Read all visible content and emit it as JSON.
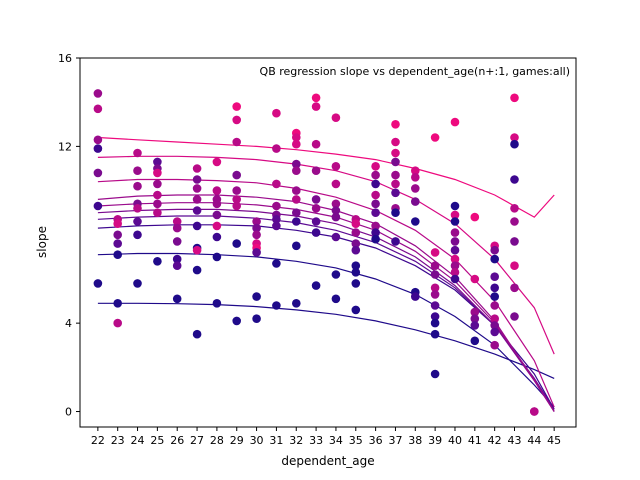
{
  "chart_data": {
    "type": "scatter",
    "title": "QB regression slope vs dependent_age(n+:1, games:all)",
    "xlabel": "dependent_age",
    "ylabel": "slope",
    "x_ticks": [
      "22",
      "23",
      "24",
      "25",
      "26",
      "27",
      "28",
      "29",
      "30",
      "31",
      "32",
      "33",
      "34",
      "35",
      "36",
      "37",
      "38",
      "39",
      "40",
      "41",
      "42",
      "43",
      "44",
      "45"
    ],
    "y_ticks": [
      0,
      4,
      12,
      16
    ],
    "ylim": [
      -0.7,
      16
    ],
    "xlim": [
      21.1,
      46.1
    ],
    "series_colors": [
      "#1f0a8a",
      "#3d078f",
      "#5c0a93",
      "#7a0b8f",
      "#9a0b8c",
      "#b80a88",
      "#d60a84",
      "#ee0a7e"
    ],
    "curves": [
      {
        "color_index": 0,
        "x": [
          22,
          24,
          26,
          28,
          30,
          32,
          34,
          36,
          38,
          40,
          42,
          44,
          45
        ],
        "y": [
          4.9,
          4.9,
          4.88,
          4.84,
          4.75,
          4.6,
          4.4,
          4.1,
          3.7,
          3.2,
          2.6,
          1.9,
          1.5
        ]
      },
      {
        "color_index": 0,
        "x": [
          22,
          24,
          26,
          28,
          30,
          32,
          34,
          36,
          38,
          40,
          42,
          44,
          45
        ],
        "y": [
          7.1,
          7.15,
          7.15,
          7.1,
          7.0,
          6.8,
          6.5,
          6.0,
          5.3,
          4.3,
          3.0,
          1.2,
          0.2
        ]
      },
      {
        "color_index": 1,
        "x": [
          22,
          24,
          26,
          28,
          30,
          32,
          34,
          36,
          38,
          40,
          42,
          44,
          45
        ],
        "y": [
          8.3,
          8.4,
          8.45,
          8.45,
          8.4,
          8.2,
          7.9,
          7.4,
          6.6,
          5.5,
          3.9,
          1.7,
          0.1
        ]
      },
      {
        "color_index": 2,
        "x": [
          22,
          24,
          26,
          28,
          30,
          32,
          34,
          36,
          38,
          40,
          42,
          44,
          45
        ],
        "y": [
          8.7,
          8.8,
          8.85,
          8.85,
          8.75,
          8.55,
          8.2,
          7.65,
          6.8,
          5.6,
          3.9,
          1.5,
          0.1
        ]
      },
      {
        "color_index": 3,
        "x": [
          22,
          24,
          26,
          28,
          30,
          32,
          34,
          36,
          38,
          40,
          42,
          44,
          45
        ],
        "y": [
          9.0,
          9.1,
          9.15,
          9.15,
          9.05,
          8.85,
          8.5,
          7.9,
          7.0,
          5.7,
          3.9,
          1.4,
          0.0
        ]
      },
      {
        "color_index": 4,
        "x": [
          22,
          24,
          26,
          28,
          30,
          32,
          34,
          36,
          38,
          40,
          42,
          44,
          45
        ],
        "y": [
          9.6,
          9.75,
          9.8,
          9.8,
          9.7,
          9.5,
          9.1,
          8.5,
          7.5,
          6.1,
          4.1,
          1.4,
          0.0
        ]
      },
      {
        "color_index": 4,
        "x": [
          22,
          24,
          26,
          28,
          30,
          32,
          34,
          36,
          38,
          40,
          42,
          44,
          45
        ],
        "y": [
          9.3,
          9.4,
          9.45,
          9.45,
          9.35,
          9.15,
          8.8,
          8.2,
          7.25,
          5.9,
          4.0,
          1.45,
          0.0
        ]
      },
      {
        "color_index": 5,
        "x": [
          22,
          24,
          26,
          28,
          30,
          32,
          34,
          36,
          38,
          40,
          42,
          44,
          45
        ],
        "y": [
          10.4,
          10.5,
          10.5,
          10.45,
          10.35,
          10.1,
          9.7,
          9.1,
          8.2,
          6.9,
          5.0,
          2.3,
          0.2
        ]
      },
      {
        "color_index": 6,
        "x": [
          22,
          24,
          26,
          28,
          30,
          32,
          34,
          36,
          38,
          40,
          42,
          44,
          45
        ],
        "y": [
          11.5,
          11.55,
          11.55,
          11.5,
          11.4,
          11.2,
          10.9,
          10.4,
          9.6,
          8.5,
          6.9,
          4.7,
          2.6
        ]
      },
      {
        "color_index": 7,
        "x": [
          22,
          24,
          26,
          28,
          30,
          32,
          34,
          36,
          38,
          40,
          42,
          44,
          45
        ],
        "y": [
          12.4,
          12.3,
          12.2,
          12.1,
          12.0,
          11.85,
          11.65,
          11.4,
          11.0,
          10.5,
          9.8,
          8.8,
          9.8
        ]
      }
    ],
    "points": [
      {
        "x": 22,
        "y": 14.4,
        "c": 4
      },
      {
        "x": 22,
        "y": 13.7,
        "c": 5
      },
      {
        "x": 22,
        "y": 12.3,
        "c": 4
      },
      {
        "x": 22,
        "y": 11.9,
        "c": 1
      },
      {
        "x": 22,
        "y": 10.8,
        "c": 3
      },
      {
        "x": 22,
        "y": 9.3,
        "c": 1
      },
      {
        "x": 22,
        "y": 5.8,
        "c": 0
      },
      {
        "x": 23,
        "y": 8.7,
        "c": 5
      },
      {
        "x": 23,
        "y": 8.5,
        "c": 6
      },
      {
        "x": 23,
        "y": 8.0,
        "c": 3
      },
      {
        "x": 23,
        "y": 7.6,
        "c": 2
      },
      {
        "x": 23,
        "y": 7.1,
        "c": 0
      },
      {
        "x": 23,
        "y": 4.9,
        "c": 0
      },
      {
        "x": 23,
        "y": 4.0,
        "c": 5
      },
      {
        "x": 24,
        "y": 11.7,
        "c": 5
      },
      {
        "x": 24,
        "y": 10.9,
        "c": 4
      },
      {
        "x": 24,
        "y": 10.2,
        "c": 4
      },
      {
        "x": 24,
        "y": 9.4,
        "c": 3
      },
      {
        "x": 24,
        "y": 9.2,
        "c": 5
      },
      {
        "x": 24,
        "y": 8.6,
        "c": 2
      },
      {
        "x": 24,
        "y": 8.0,
        "c": 1
      },
      {
        "x": 24,
        "y": 5.8,
        "c": 0
      },
      {
        "x": 25,
        "y": 11.3,
        "c": 2
      },
      {
        "x": 25,
        "y": 11.0,
        "c": 3
      },
      {
        "x": 25,
        "y": 10.8,
        "c": 6
      },
      {
        "x": 25,
        "y": 10.3,
        "c": 4
      },
      {
        "x": 25,
        "y": 9.8,
        "c": 5
      },
      {
        "x": 25,
        "y": 9.4,
        "c": 4
      },
      {
        "x": 25,
        "y": 9.0,
        "c": 5
      },
      {
        "x": 25,
        "y": 6.8,
        "c": 0
      },
      {
        "x": 26,
        "y": 8.6,
        "c": 5
      },
      {
        "x": 26,
        "y": 8.3,
        "c": 4
      },
      {
        "x": 26,
        "y": 7.7,
        "c": 3
      },
      {
        "x": 26,
        "y": 6.9,
        "c": 1
      },
      {
        "x": 26,
        "y": 6.6,
        "c": 2
      },
      {
        "x": 26,
        "y": 5.1,
        "c": 0
      },
      {
        "x": 27,
        "y": 11.0,
        "c": 5
      },
      {
        "x": 27,
        "y": 10.5,
        "c": 3
      },
      {
        "x": 27,
        "y": 10.1,
        "c": 4
      },
      {
        "x": 27,
        "y": 9.6,
        "c": 4
      },
      {
        "x": 27,
        "y": 9.1,
        "c": 2
      },
      {
        "x": 27,
        "y": 8.4,
        "c": 1
      },
      {
        "x": 27,
        "y": 7.4,
        "c": 0
      },
      {
        "x": 27,
        "y": 7.3,
        "c": 6
      },
      {
        "x": 27,
        "y": 6.4,
        "c": 0
      },
      {
        "x": 27,
        "y": 3.5,
        "c": 0
      },
      {
        "x": 28,
        "y": 11.3,
        "c": 6
      },
      {
        "x": 28,
        "y": 10.0,
        "c": 5
      },
      {
        "x": 28,
        "y": 9.6,
        "c": 4
      },
      {
        "x": 28,
        "y": 9.4,
        "c": 4
      },
      {
        "x": 28,
        "y": 8.9,
        "c": 3
      },
      {
        "x": 28,
        "y": 8.4,
        "c": 6
      },
      {
        "x": 28,
        "y": 7.9,
        "c": 1
      },
      {
        "x": 28,
        "y": 7.0,
        "c": 0
      },
      {
        "x": 28,
        "y": 4.9,
        "c": 0
      },
      {
        "x": 29,
        "y": 13.8,
        "c": 7
      },
      {
        "x": 29,
        "y": 13.2,
        "c": 6
      },
      {
        "x": 29,
        "y": 12.2,
        "c": 5
      },
      {
        "x": 29,
        "y": 10.7,
        "c": 3
      },
      {
        "x": 29,
        "y": 10.0,
        "c": 4
      },
      {
        "x": 29,
        "y": 9.6,
        "c": 5
      },
      {
        "x": 29,
        "y": 9.3,
        "c": 5
      },
      {
        "x": 29,
        "y": 7.6,
        "c": 0
      },
      {
        "x": 29,
        "y": 4.1,
        "c": 0
      },
      {
        "x": 30,
        "y": 8.6,
        "c": 4
      },
      {
        "x": 30,
        "y": 8.3,
        "c": 3
      },
      {
        "x": 30,
        "y": 8.0,
        "c": 4
      },
      {
        "x": 30,
        "y": 7.6,
        "c": 6
      },
      {
        "x": 30,
        "y": 7.4,
        "c": 7
      },
      {
        "x": 30,
        "y": 7.2,
        "c": 2
      },
      {
        "x": 30,
        "y": 5.2,
        "c": 0
      },
      {
        "x": 30,
        "y": 4.2,
        "c": 0
      },
      {
        "x": 31,
        "y": 13.5,
        "c": 6
      },
      {
        "x": 31,
        "y": 11.9,
        "c": 5
      },
      {
        "x": 31,
        "y": 10.3,
        "c": 5
      },
      {
        "x": 31,
        "y": 9.3,
        "c": 4
      },
      {
        "x": 31,
        "y": 8.9,
        "c": 3
      },
      {
        "x": 31,
        "y": 8.7,
        "c": 2
      },
      {
        "x": 31,
        "y": 8.4,
        "c": 2
      },
      {
        "x": 31,
        "y": 6.7,
        "c": 0
      },
      {
        "x": 31,
        "y": 4.8,
        "c": 0
      },
      {
        "x": 32,
        "y": 12.6,
        "c": 7
      },
      {
        "x": 32,
        "y": 12.4,
        "c": 6
      },
      {
        "x": 32,
        "y": 12.1,
        "c": 6
      },
      {
        "x": 32,
        "y": 11.2,
        "c": 3
      },
      {
        "x": 32,
        "y": 10.9,
        "c": 4
      },
      {
        "x": 32,
        "y": 10.0,
        "c": 4
      },
      {
        "x": 32,
        "y": 9.6,
        "c": 5
      },
      {
        "x": 32,
        "y": 9.0,
        "c": 3
      },
      {
        "x": 32,
        "y": 8.6,
        "c": 1
      },
      {
        "x": 32,
        "y": 7.5,
        "c": 0
      },
      {
        "x": 32,
        "y": 4.9,
        "c": 0
      },
      {
        "x": 33,
        "y": 14.2,
        "c": 7
      },
      {
        "x": 33,
        "y": 13.8,
        "c": 6
      },
      {
        "x": 33,
        "y": 12.1,
        "c": 5
      },
      {
        "x": 33,
        "y": 10.9,
        "c": 4
      },
      {
        "x": 33,
        "y": 9.6,
        "c": 3
      },
      {
        "x": 33,
        "y": 9.2,
        "c": 4
      },
      {
        "x": 33,
        "y": 8.6,
        "c": 2
      },
      {
        "x": 33,
        "y": 8.1,
        "c": 1
      },
      {
        "x": 33,
        "y": 5.7,
        "c": 0
      },
      {
        "x": 34,
        "y": 13.3,
        "c": 6
      },
      {
        "x": 34,
        "y": 11.1,
        "c": 5
      },
      {
        "x": 34,
        "y": 10.3,
        "c": 5
      },
      {
        "x": 34,
        "y": 9.4,
        "c": 4
      },
      {
        "x": 34,
        "y": 9.1,
        "c": 3
      },
      {
        "x": 34,
        "y": 8.8,
        "c": 3
      },
      {
        "x": 34,
        "y": 7.9,
        "c": 2
      },
      {
        "x": 34,
        "y": 6.2,
        "c": 0
      },
      {
        "x": 34,
        "y": 5.1,
        "c": 0
      },
      {
        "x": 35,
        "y": 8.7,
        "c": 5
      },
      {
        "x": 35,
        "y": 8.5,
        "c": 6
      },
      {
        "x": 35,
        "y": 8.1,
        "c": 4
      },
      {
        "x": 35,
        "y": 7.6,
        "c": 3
      },
      {
        "x": 35,
        "y": 7.3,
        "c": 2
      },
      {
        "x": 35,
        "y": 6.6,
        "c": 0
      },
      {
        "x": 35,
        "y": 6.3,
        "c": 0
      },
      {
        "x": 35,
        "y": 5.8,
        "c": 0
      },
      {
        "x": 35,
        "y": 4.6,
        "c": 0
      },
      {
        "x": 36,
        "y": 11.1,
        "c": 6
      },
      {
        "x": 36,
        "y": 10.7,
        "c": 4
      },
      {
        "x": 36,
        "y": 10.3,
        "c": 1
      },
      {
        "x": 36,
        "y": 9.8,
        "c": 5
      },
      {
        "x": 36,
        "y": 9.4,
        "c": 3
      },
      {
        "x": 36,
        "y": 9.0,
        "c": 2
      },
      {
        "x": 36,
        "y": 8.4,
        "c": 4
      },
      {
        "x": 36,
        "y": 8.1,
        "c": 1
      },
      {
        "x": 36,
        "y": 7.8,
        "c": 0
      },
      {
        "x": 37,
        "y": 13.0,
        "c": 7
      },
      {
        "x": 37,
        "y": 12.2,
        "c": 6
      },
      {
        "x": 37,
        "y": 11.7,
        "c": 6
      },
      {
        "x": 37,
        "y": 11.3,
        "c": 3
      },
      {
        "x": 37,
        "y": 10.7,
        "c": 4
      },
      {
        "x": 37,
        "y": 10.3,
        "c": 5
      },
      {
        "x": 37,
        "y": 9.9,
        "c": 2
      },
      {
        "x": 37,
        "y": 9.2,
        "c": 4
      },
      {
        "x": 37,
        "y": 9.0,
        "c": 0
      },
      {
        "x": 37,
        "y": 7.7,
        "c": 1
      },
      {
        "x": 38,
        "y": 10.9,
        "c": 6
      },
      {
        "x": 38,
        "y": 10.6,
        "c": 5
      },
      {
        "x": 38,
        "y": 10.1,
        "c": 4
      },
      {
        "x": 38,
        "y": 9.5,
        "c": 3
      },
      {
        "x": 38,
        "y": 8.6,
        "c": 0
      },
      {
        "x": 38,
        "y": 5.4,
        "c": 0
      },
      {
        "x": 38,
        "y": 5.2,
        "c": 1
      },
      {
        "x": 39,
        "y": 12.4,
        "c": 7
      },
      {
        "x": 39,
        "y": 7.2,
        "c": 6
      },
      {
        "x": 39,
        "y": 6.6,
        "c": 4
      },
      {
        "x": 39,
        "y": 6.2,
        "c": 3
      },
      {
        "x": 39,
        "y": 5.6,
        "c": 5
      },
      {
        "x": 39,
        "y": 5.3,
        "c": 4
      },
      {
        "x": 39,
        "y": 4.8,
        "c": 2
      },
      {
        "x": 39,
        "y": 4.3,
        "c": 1
      },
      {
        "x": 39,
        "y": 4.0,
        "c": 0
      },
      {
        "x": 39,
        "y": 3.5,
        "c": 0
      },
      {
        "x": 39,
        "y": 1.7,
        "c": 0
      },
      {
        "x": 40,
        "y": 13.1,
        "c": 7
      },
      {
        "x": 40,
        "y": 9.3,
        "c": 0
      },
      {
        "x": 40,
        "y": 8.9,
        "c": 6
      },
      {
        "x": 40,
        "y": 8.6,
        "c": 0
      },
      {
        "x": 40,
        "y": 8.1,
        "c": 4
      },
      {
        "x": 40,
        "y": 7.7,
        "c": 3
      },
      {
        "x": 40,
        "y": 7.3,
        "c": 2
      },
      {
        "x": 40,
        "y": 6.9,
        "c": 6
      },
      {
        "x": 40,
        "y": 6.6,
        "c": 4
      },
      {
        "x": 40,
        "y": 6.3,
        "c": 5
      },
      {
        "x": 40,
        "y": 6.0,
        "c": 1
      },
      {
        "x": 41,
        "y": 8.8,
        "c": 7
      },
      {
        "x": 41,
        "y": 6.0,
        "c": 6
      },
      {
        "x": 41,
        "y": 4.5,
        "c": 4
      },
      {
        "x": 41,
        "y": 4.2,
        "c": 3
      },
      {
        "x": 41,
        "y": 3.9,
        "c": 2
      },
      {
        "x": 41,
        "y": 3.2,
        "c": 0
      },
      {
        "x": 42,
        "y": 7.5,
        "c": 6
      },
      {
        "x": 42,
        "y": 7.3,
        "c": 3
      },
      {
        "x": 42,
        "y": 6.9,
        "c": 0
      },
      {
        "x": 42,
        "y": 6.1,
        "c": 2
      },
      {
        "x": 42,
        "y": 5.6,
        "c": 1
      },
      {
        "x": 42,
        "y": 5.2,
        "c": 0
      },
      {
        "x": 42,
        "y": 4.8,
        "c": 4
      },
      {
        "x": 42,
        "y": 4.2,
        "c": 5
      },
      {
        "x": 42,
        "y": 3.9,
        "c": 3
      },
      {
        "x": 42,
        "y": 3.6,
        "c": 2
      },
      {
        "x": 42,
        "y": 3.0,
        "c": 4
      },
      {
        "x": 43,
        "y": 14.2,
        "c": 7
      },
      {
        "x": 43,
        "y": 12.4,
        "c": 6
      },
      {
        "x": 43,
        "y": 12.1,
        "c": 0
      },
      {
        "x": 43,
        "y": 10.5,
        "c": 1
      },
      {
        "x": 43,
        "y": 9.2,
        "c": 5
      },
      {
        "x": 43,
        "y": 8.6,
        "c": 4
      },
      {
        "x": 43,
        "y": 7.7,
        "c": 3
      },
      {
        "x": 43,
        "y": 6.6,
        "c": 6
      },
      {
        "x": 43,
        "y": 5.6,
        "c": 4
      },
      {
        "x": 43,
        "y": 4.3,
        "c": 3
      },
      {
        "x": 44,
        "y": 0.0,
        "c": 4
      },
      {
        "x": 44,
        "y": 0.0,
        "c": 5
      }
    ]
  }
}
